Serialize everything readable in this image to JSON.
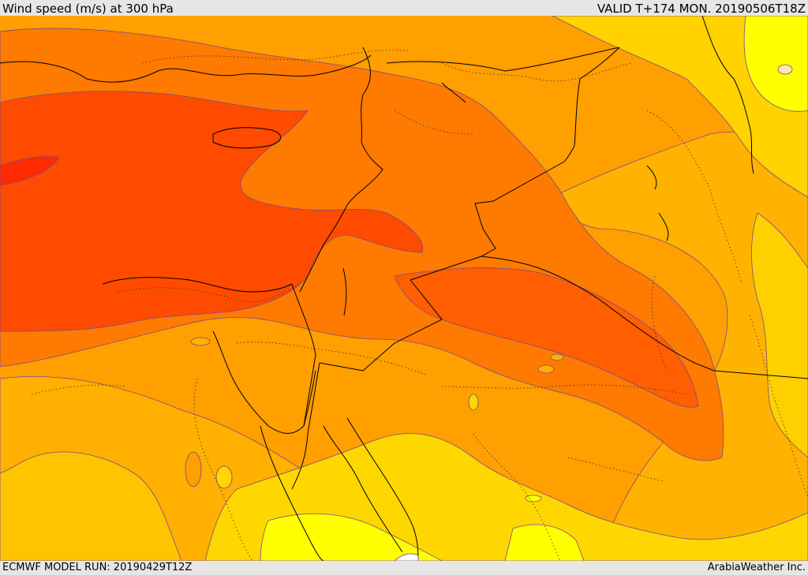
{
  "header": {
    "title": "Wind speed (m/s) at 300 hPa",
    "valid": "VALID T+174 MON. 20190506T18Z"
  },
  "footer": {
    "model_run": "ECMWF MODEL RUN: 20190429T12Z",
    "brand": "ArabiaWeather Inc."
  },
  "map": {
    "variable": "wind speed",
    "level": "300 hPa",
    "palette": {
      "yellow": "#ffff00",
      "gold": "#ffd700",
      "amber": "#ffa500",
      "orange": "#ff8c00",
      "dark_orange": "#ff6600",
      "red_orange": "#ff4500",
      "red": "#ff2200",
      "contour": "#7a4a8a",
      "border": "#000000"
    }
  }
}
